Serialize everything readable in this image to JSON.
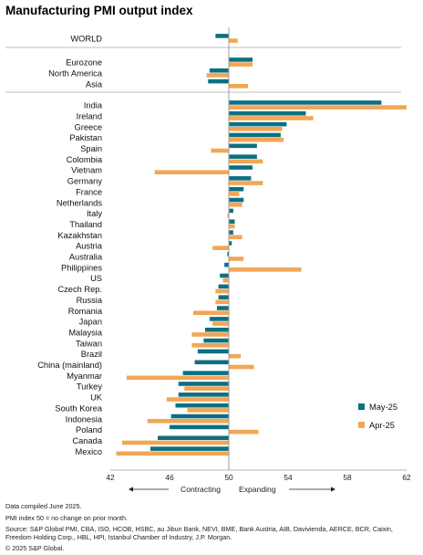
{
  "chart_data": {
    "type": "bar",
    "orientation": "horizontal",
    "title": "Manufacturing PMI output index",
    "categories": [
      "WORLD",
      "Eurozone",
      "North America",
      "Asia",
      "India",
      "Ireland",
      "Greece",
      "Pakistan",
      "Spain",
      "Colombia",
      "Vietnam",
      "Germany",
      "France",
      "Netherlands",
      "Italy",
      "Thailand",
      "Kazakhstan",
      "Austria",
      "Australia",
      "Philippines",
      "US",
      "Czech Rep.",
      "Russia",
      "Romania",
      "Japan",
      "Malaysia",
      "Taiwan",
      "Brazil",
      "China (mainland)",
      "Myanmar",
      "Turkey",
      "UK",
      "South Korea",
      "Indonesia",
      "Poland",
      "Canada",
      "Mexico"
    ],
    "groups": [
      {
        "label": "",
        "count": 1
      },
      {
        "label": "",
        "count": 3
      },
      {
        "label": "",
        "count": 33
      }
    ],
    "series": [
      {
        "name": "May-25",
        "color": "#0e6f82",
        "values": [
          49.1,
          51.6,
          48.7,
          48.6,
          60.3,
          55.2,
          53.9,
          53.5,
          51.9,
          51.9,
          51.6,
          51.5,
          51.0,
          51.0,
          50.3,
          50.4,
          50.3,
          50.2,
          49.9,
          49.7,
          49.4,
          49.3,
          49.3,
          49.2,
          48.7,
          48.4,
          48.3,
          47.9,
          47.7,
          46.9,
          46.6,
          46.6,
          46.4,
          46.1,
          46.0,
          45.2,
          44.7
        ]
      },
      {
        "name": "Apr-25",
        "color": "#f2a654",
        "values": [
          50.6,
          51.6,
          48.5,
          51.3,
          62.0,
          55.7,
          53.6,
          53.7,
          48.8,
          52.3,
          45.0,
          52.3,
          50.7,
          50.9,
          49.9,
          50.4,
          50.9,
          48.9,
          51.0,
          54.9,
          49.6,
          49.1,
          49.1,
          47.6,
          48.9,
          47.5,
          47.5,
          50.8,
          51.7,
          43.1,
          47.0,
          45.8,
          47.2,
          44.5,
          52.0,
          42.8,
          42.4
        ]
      }
    ],
    "x_ticks": [
      42,
      46,
      50,
      54,
      58,
      62
    ],
    "xlim": [
      42,
      62
    ],
    "reference_line": 50,
    "axis_annotations": {
      "left": "Contracting",
      "right": "Expanding"
    },
    "legend_position": "bottom-right"
  },
  "notes": {
    "line1": "Data compiled June 2025.",
    "line2": "PMI index 50 = no change on prior month.",
    "line3": "Source: S&P Global PMI, CBA, ISO, HCOB, HSBC, au Jibun Bank, NEVI, BME, Bank Austria, AIB, Davivienda, AERCE, BCR, Caixin,",
    "line4": "Freedom Holding Corp., HBL, HPI, Istanbul Chamber of Industry, J.P. Morgan.",
    "line5": "© 2025 S&P Global."
  }
}
